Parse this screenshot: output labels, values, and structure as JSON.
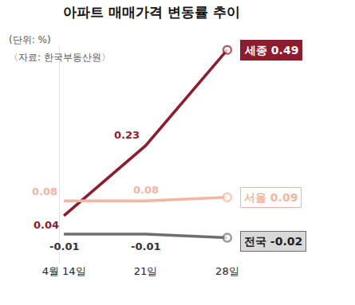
{
  "chart_data": {
    "type": "line",
    "title": "아파트 매매가격 변동률 추이",
    "subtitle": "(단위: %)",
    "source": "〈자료: 한국부동산원〉",
    "categories": [
      "4월 14일",
      "21일",
      "28일"
    ],
    "series": [
      {
        "name": "세종",
        "color": "#8c1c2e",
        "values": [
          0.04,
          0.23,
          0.49
        ]
      },
      {
        "name": "서울",
        "color": "#f2b4a3",
        "values": [
          0.08,
          0.08,
          0.09
        ]
      },
      {
        "name": "전국",
        "color": "#6e6e6e",
        "values": [
          -0.01,
          -0.01,
          -0.02
        ]
      }
    ],
    "ylim": [
      -0.09,
      0.5
    ],
    "yticks": [],
    "grid": false,
    "data_labels": true,
    "tick_labels": "x"
  }
}
